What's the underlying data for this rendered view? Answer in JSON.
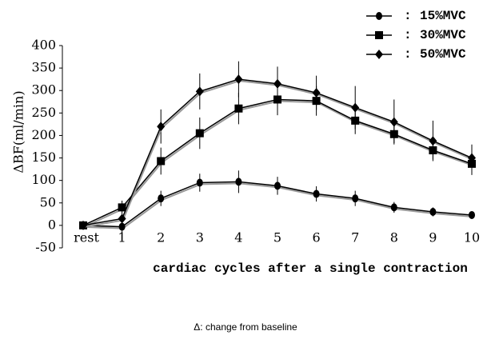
{
  "chart_data": {
    "type": "line",
    "y_label": "ΔBF(ml/min)",
    "x_label": "cardiac cycles after a single contraction",
    "footnote": "Δ: change from baseline",
    "legend_separator": ":",
    "categories": [
      "rest",
      "1",
      "2",
      "3",
      "4",
      "5",
      "6",
      "7",
      "8",
      "9",
      "10"
    ],
    "series": [
      {
        "name": "15%MVC",
        "marker": "circle",
        "color": "#000000",
        "values": [
          0,
          -3,
          60,
          95,
          97,
          88,
          70,
          60,
          40,
          30,
          23
        ],
        "errors": [
          0,
          15,
          17,
          20,
          25,
          20,
          17,
          17,
          12,
          10,
          8
        ]
      },
      {
        "name": "30%MVC",
        "marker": "square",
        "color": "#000000",
        "values": [
          0,
          40,
          143,
          205,
          260,
          280,
          277,
          233,
          203,
          167,
          137
        ],
        "errors": [
          0,
          15,
          30,
          35,
          35,
          35,
          33,
          30,
          20,
          20,
          25
        ]
      },
      {
        "name": "50%MVC",
        "marker": "diamond",
        "color": "#000000",
        "values": [
          0,
          15,
          220,
          298,
          325,
          315,
          295,
          262,
          230,
          188,
          150
        ],
        "errors": [
          0,
          10,
          38,
          40,
          40,
          38,
          38,
          48,
          50,
          45,
          30
        ]
      }
    ],
    "ylim": [
      -50,
      400
    ],
    "yticks": [
      -50,
      0,
      50,
      100,
      150,
      200,
      250,
      300,
      350,
      400
    ],
    "legend": "top-right"
  }
}
